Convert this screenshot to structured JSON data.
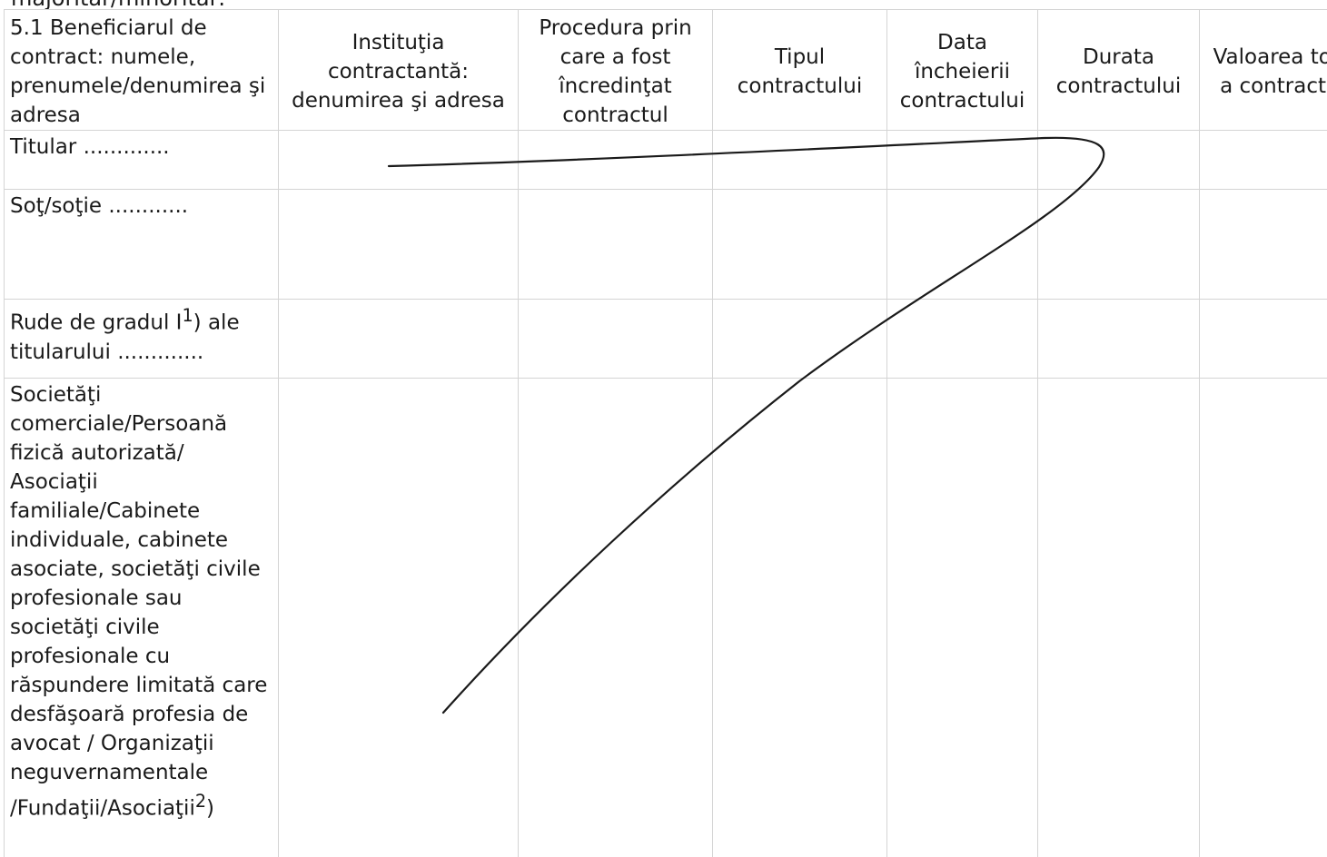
{
  "header": {
    "cut_text": "majoritar/minoritar:"
  },
  "table": {
    "columns": [
      "5.1 Beneficiarul de contract: numele, prenumele/denumirea şi adresa",
      "Instituţia contractantă: denumirea şi adresa",
      "Procedura prin care a fost încredinţat contractul",
      "Tipul contractului",
      "Data încheierii contractului",
      "Durata contractului",
      "Valoarea totală a contractului"
    ],
    "rows": {
      "titular": "Titular .............",
      "sot": "Soţ/soţie ............",
      "rude_pre": "Rude de gradul I",
      "rude_sup": "1",
      "rude_post": ") ale titularului .............",
      "soc_pre": "Societăţi comerciale/Persoană fizică autorizată/ Asociaţii familiale/Cabinete individuale, cabinete asociate, societăţi civile profesionale sau societăţi civile profesionale cu răspundere limitată care desfăşoară profesia de avocat / Organizaţii neguvernamentale /Fundaţii/Asociaţii",
      "soc_sup": "2",
      "soc_post": ")"
    }
  },
  "colors": {
    "ink": "#1a1a1a",
    "grid": "#d4d4d4"
  }
}
